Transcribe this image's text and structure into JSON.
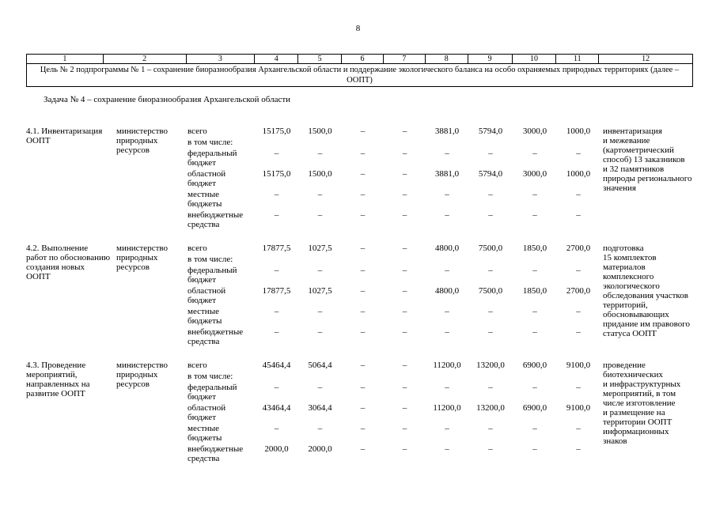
{
  "page": {
    "number": "8"
  },
  "table": {
    "column_numbers": [
      "1",
      "2",
      "3",
      "4",
      "5",
      "6",
      "7",
      "8",
      "9",
      "10",
      "11",
      "12"
    ],
    "goal": "Цель № 2 подпрограммы № 1 –  сохранение биоразнообразия Архангельской области и поддержание экологического баланса на особо охраняемых  природных территориях (далее – ООПТ)",
    "task": "Задача № 4 – сохранение биоразнообразия Архангельской области",
    "groups": [
      {
        "name": "4.1. Инвентаризация\nООПТ",
        "executor": "министерство\nприродных\nресурсов",
        "rows": [
          {
            "label": "всего",
            "values": [
              "15175,0",
              "1500,0",
              "–",
              "–",
              "3881,0",
              "5794,0",
              "3000,0",
              "1000,0"
            ]
          },
          {
            "label": "в том числе:",
            "values": [
              "",
              "",
              "",
              "",
              "",
              "",
              "",
              ""
            ]
          },
          {
            "label": "федеральный\nбюджет",
            "values": [
              "–",
              "–",
              "–",
              "–",
              "–",
              "–",
              "–",
              "–"
            ]
          },
          {
            "label": "областной\nбюджет",
            "values": [
              "15175,0",
              "1500,0",
              "–",
              "–",
              "3881,0",
              "5794,0",
              "3000,0",
              "1000,0"
            ]
          },
          {
            "label": "местные\nбюджеты",
            "values": [
              "–",
              "–",
              "–",
              "–",
              "–",
              "–",
              "–",
              "–"
            ]
          },
          {
            "label": "внебюджетные\nсредства",
            "values": [
              "–",
              "–",
              "–",
              "–",
              "–",
              "–",
              "–",
              "–"
            ]
          }
        ],
        "result": "инвентаризация\nи межевание\n(картометрический\nспособ) 13 заказников\nи 32 памятников\nприроды регионального\nзначения"
      },
      {
        "name": "4.2. Выполнение\nработ по обоснованию\nсоздания новых\nООПТ",
        "executor": "министерство\nприродных\nресурсов",
        "rows": [
          {
            "label": "всего",
            "values": [
              "17877,5",
              "1027,5",
              "–",
              "–",
              "4800,0",
              "7500,0",
              "1850,0",
              "2700,0"
            ]
          },
          {
            "label": "в том числе:",
            "values": [
              "",
              "",
              "",
              "",
              "",
              "",
              "",
              ""
            ]
          },
          {
            "label": "федеральный\nбюджет",
            "values": [
              "–",
              "–",
              "–",
              "–",
              "–",
              "–",
              "–",
              "–"
            ]
          },
          {
            "label": "областной\nбюджет",
            "values": [
              "17877,5",
              "1027,5",
              "–",
              "–",
              "4800,0",
              "7500,0",
              "1850,0",
              "2700,0"
            ]
          },
          {
            "label": "местные\nбюджеты",
            "values": [
              "–",
              "–",
              "–",
              "–",
              "–",
              "–",
              "–",
              "–"
            ]
          },
          {
            "label": "внебюджетные\nсредства",
            "values": [
              "–",
              "–",
              "–",
              "–",
              "–",
              "–",
              "–",
              "–"
            ]
          }
        ],
        "result": "подготовка\n15 комплектов\nматериалов\nкомплексного\nэкологического\nобследования участков\nтерриторий,\nобосновывающих\nпридание им правового\nстатуса ООПТ"
      },
      {
        "name": "4.3. Проведение\nмероприятий,\nнаправленных на\nразвитие ООПТ",
        "executor": "министерство\nприродных\nресурсов",
        "rows": [
          {
            "label": "всего",
            "values": [
              "45464,4",
              "5064,4",
              "–",
              "–",
              "11200,0",
              "13200,0",
              "6900,0",
              "9100,0"
            ]
          },
          {
            "label": "в том числе:",
            "values": [
              "",
              "",
              "",
              "",
              "",
              "",
              "",
              ""
            ]
          },
          {
            "label": "федеральный\nбюджет",
            "values": [
              "–",
              "–",
              "–",
              "–",
              "–",
              "–",
              "–",
              "–"
            ]
          },
          {
            "label": "областной\nбюджет",
            "values": [
              "43464,4",
              "3064,4",
              "–",
              "–",
              "11200,0",
              "13200,0",
              "6900,0",
              "9100,0"
            ]
          },
          {
            "label": "местные\nбюджеты",
            "values": [
              "–",
              "–",
              "–",
              "–",
              "–",
              "–",
              "–",
              "–"
            ]
          },
          {
            "label": "внебюджетные\nсредства",
            "values": [
              "2000,0",
              "2000,0",
              "–",
              "–",
              "–",
              "–",
              "–",
              "–"
            ]
          }
        ],
        "result": "проведение\nбиотехнических\nи инфраструктурных\nмероприятий, в том\nчисле изготовление\nи размещение на\nтерритории ООПТ\nинформационных\nзнаков"
      }
    ]
  }
}
